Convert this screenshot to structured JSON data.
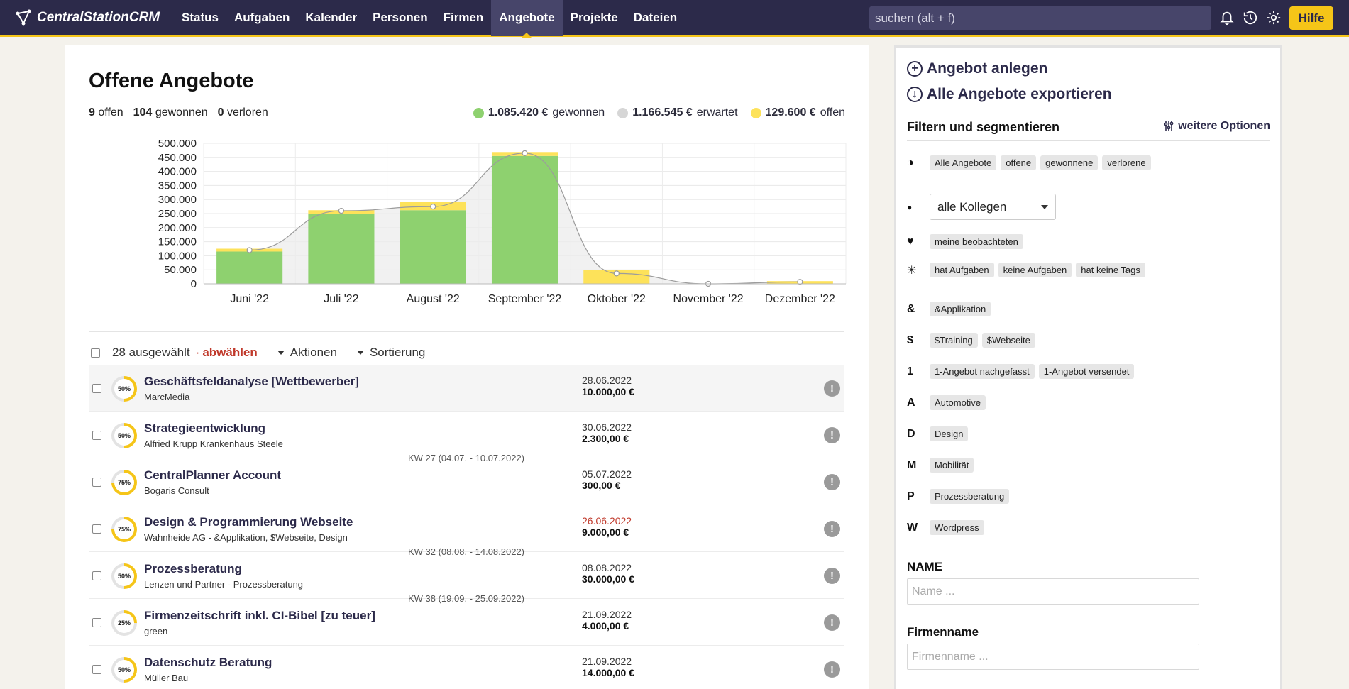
{
  "app": {
    "logo_text": "CentralStationCRM"
  },
  "nav": {
    "items": [
      {
        "label": "Status"
      },
      {
        "label": "Aufgaben"
      },
      {
        "label": "Kalender"
      },
      {
        "label": "Personen"
      },
      {
        "label": "Firmen"
      },
      {
        "label": "Angebote"
      },
      {
        "label": "Projekte"
      },
      {
        "label": "Dateien"
      }
    ],
    "active": "Angebote",
    "search_placeholder": "suchen (alt + f)",
    "help_label": "Hilfe"
  },
  "main": {
    "title": "Offene Angebote",
    "stats": [
      {
        "count": "9",
        "label": "offen"
      },
      {
        "count": "104",
        "label": "gewonnen"
      },
      {
        "count": "0",
        "label": "verloren"
      }
    ],
    "legend": [
      {
        "value": "1.085.420 €",
        "label": "gewonnen",
        "color": "#8ed16f"
      },
      {
        "value": "1.166.545 €",
        "label": "erwartet",
        "color": "#d6d6d6"
      },
      {
        "value": "129.600 €",
        "label": "offen",
        "color": "#fde25a"
      }
    ],
    "toolbar": {
      "selected": "28 ausgewählt",
      "separator": "·",
      "deselect": "abwählen",
      "actions": "Aktionen",
      "sorting": "Sortierung"
    }
  },
  "chart_data": {
    "type": "bar",
    "categories": [
      "Juni '22",
      "Juli '22",
      "August '22",
      "September '22",
      "Oktober '22",
      "November '22",
      "Dezember '22"
    ],
    "series": [
      {
        "name": "gewonnen",
        "values": [
          115000,
          250000,
          262000,
          455000,
          0,
          0,
          0
        ],
        "color": "#8ed16f"
      },
      {
        "name": "offen",
        "values": [
          10000,
          12000,
          30000,
          14000,
          50000,
          0,
          9600
        ],
        "color": "#fde25a"
      },
      {
        "name": "erwartet",
        "values": [
          120000,
          260000,
          275000,
          465000,
          37000,
          0,
          7000
        ],
        "color": "#d6d6d6"
      }
    ],
    "yticks": [
      "0",
      "50.000",
      "100.000",
      "150.000",
      "200.000",
      "250.000",
      "300.000",
      "350.000",
      "400.000",
      "450.000",
      "500.000"
    ],
    "ylim": [
      0,
      500000
    ],
    "grid": true
  },
  "offers": [
    {
      "progress": "50%",
      "progress_value": 0.5,
      "title": "Geschäftsfeldanalyse [Wettbewerber]",
      "subtitle": "MarcMedia",
      "date": "28.06.2022",
      "amount": "10.000,00 €",
      "overdue": false
    },
    {
      "progress": "50%",
      "progress_value": 0.5,
      "title": "Strategieentwicklung",
      "subtitle": "Alfried Krupp Krankenhaus Steele",
      "date": "30.06.2022",
      "amount": "2.300,00 €",
      "overdue": false
    },
    {
      "progress": "75%",
      "progress_value": 0.75,
      "title": "CentralPlanner Account",
      "subtitle": "Bogaris Consult",
      "date": "05.07.2022",
      "amount": "300,00 €",
      "overdue": false
    },
    {
      "progress": "75%",
      "progress_value": 0.75,
      "title": "Design & Programmierung Webseite",
      "subtitle": "Wahnheide AG - &Applikation, $Webseite, Design",
      "date": "26.06.2022",
      "amount": "9.000,00 €",
      "overdue": true
    },
    {
      "progress": "50%",
      "progress_value": 0.5,
      "title": "Prozessberatung",
      "subtitle": "Lenzen und Partner - Prozessberatung",
      "date": "08.08.2022",
      "amount": "30.000,00 €",
      "overdue": false
    },
    {
      "progress": "25%",
      "progress_value": 0.25,
      "title": "Firmenzeitschrift inkl. CI-Bibel [zu teuer]",
      "subtitle": "green",
      "date": "21.09.2022",
      "amount": "4.000,00 €",
      "overdue": false
    },
    {
      "progress": "50%",
      "progress_value": 0.5,
      "title": "Datenschutz Beratung",
      "subtitle": "Müller Bau",
      "date": "21.09.2022",
      "amount": "14.000,00 €",
      "overdue": false
    }
  ],
  "week_separators": [
    "KW 27 (04.07. - 10.07.2022)",
    "KW 32 (08.08. - 14.08.2022)",
    "KW 38 (19.09. - 25.09.2022)"
  ],
  "panel": {
    "create_offer": "Angebot anlegen",
    "export_offers": "Alle Angebote exportieren",
    "filter_title": "Filtern und segmentieren",
    "more_options": "weitere Optionen",
    "status_tags": [
      "Alle Angebote",
      "offene",
      "gewonnene",
      "verlorene"
    ],
    "colleague_select": "alle Kollegen",
    "watch_tags": [
      "meine beobachteten"
    ],
    "task_tags": [
      "hat Aufgaben",
      "keine Aufgaben",
      "hat keine Tags"
    ],
    "tag_groups": [
      {
        "letter": "&",
        "tags": [
          "&Applikation"
        ]
      },
      {
        "letter": "$",
        "tags": [
          "$Training",
          "$Webseite"
        ]
      },
      {
        "letter": "1",
        "tags": [
          "1-Angebot nachgefasst",
          "1-Angebot versendet"
        ]
      },
      {
        "letter": "A",
        "tags": [
          "Automotive"
        ]
      },
      {
        "letter": "D",
        "tags": [
          "Design"
        ]
      },
      {
        "letter": "M",
        "tags": [
          "Mobilität"
        ]
      },
      {
        "letter": "P",
        "tags": [
          "Prozessberatung"
        ]
      },
      {
        "letter": "W",
        "tags": [
          "Wordpress"
        ]
      }
    ],
    "name_label": "NAME",
    "name_placeholder": "Name ...",
    "company_label": "Firmenname",
    "company_placeholder": "Firmenname ..."
  }
}
